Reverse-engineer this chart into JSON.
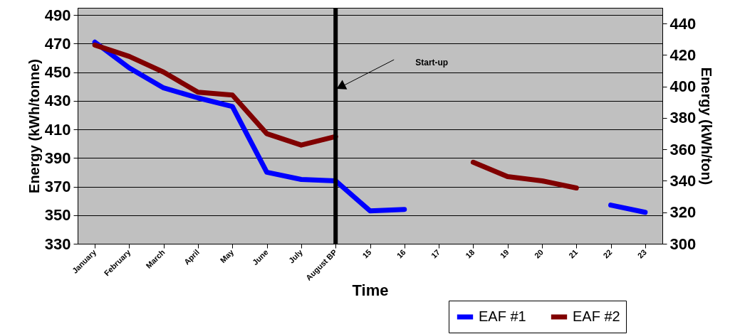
{
  "chart_data": {
    "type": "line",
    "xlabel": "Time",
    "ylabel": "Energy (kWh/tonne)",
    "y2label": "Energy (kWh/ton)",
    "categories": [
      "January",
      "February",
      "March",
      "April",
      "May",
      "June",
      "July",
      "August BP",
      "15",
      "16",
      "17",
      "18",
      "19",
      "20",
      "21",
      "22",
      "23"
    ],
    "series": [
      {
        "name": "EAF #1",
        "color": "#0000ff",
        "values": [
          471,
          453,
          439,
          432,
          426,
          380,
          375,
          374,
          353,
          354,
          null,
          null,
          null,
          null,
          null,
          357,
          352
        ]
      },
      {
        "name": "EAF #2",
        "color": "#800000",
        "values": [
          469,
          461,
          450,
          436,
          434,
          407,
          399,
          405,
          null,
          null,
          null,
          387,
          377,
          374,
          369,
          null,
          null
        ]
      }
    ],
    "ylim": [
      330,
      495
    ],
    "yticks": [
      330,
      350,
      370,
      390,
      410,
      430,
      450,
      470,
      490
    ],
    "y2lim": [
      300,
      450
    ],
    "y2ticks": [
      300,
      320,
      340,
      360,
      380,
      400,
      420,
      440
    ],
    "ref_lines": [
      {
        "axis": "x",
        "value": "August BP",
        "color": "#000000"
      }
    ],
    "annotations": [
      "Start-up"
    ],
    "grid": "y",
    "legend": "bottom right",
    "marker": "none",
    "line_style": "solid"
  }
}
